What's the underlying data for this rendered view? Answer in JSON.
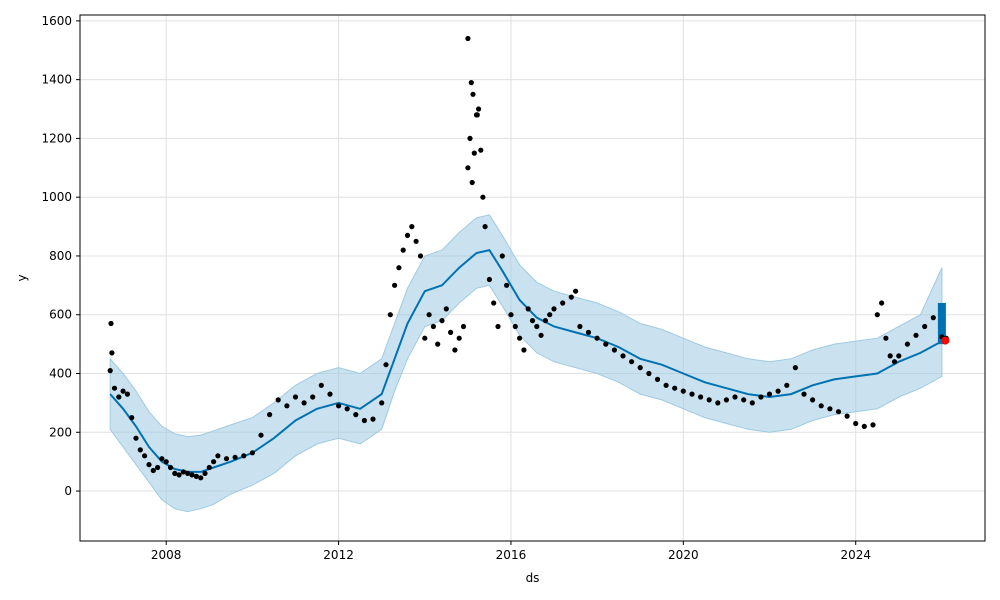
{
  "chart_data": {
    "type": "line",
    "title": "",
    "xlabel": "ds",
    "ylabel": "y",
    "xlim": [
      2006.0,
      2027.0
    ],
    "ylim": [
      -170,
      1620
    ],
    "xticks": [
      2008,
      2012,
      2016,
      2020,
      2024
    ],
    "xtick_labels": [
      "2008",
      "2012",
      "2016",
      "2020",
      "2024"
    ],
    "yticks": [
      0,
      200,
      400,
      600,
      800,
      1000,
      1200,
      1400,
      1600
    ],
    "ytick_labels": [
      "0",
      "200",
      "400",
      "600",
      "800",
      "1000",
      "1200",
      "1400",
      "1600"
    ],
    "grid": true,
    "colors": {
      "observed": "#000000",
      "forecast": "#0072B2",
      "interval": "#9ecae1",
      "marker": "#ff0000"
    },
    "series": [
      {
        "kind": "forecast",
        "x": [
          2006.7,
          2007.0,
          2007.3,
          2007.6,
          2007.9,
          2008.2,
          2008.5,
          2008.8,
          2009.1,
          2009.5,
          2010.0,
          2010.5,
          2011.0,
          2011.5,
          2012.0,
          2012.5,
          2013.0,
          2013.3,
          2013.6,
          2014.0,
          2014.4,
          2014.8,
          2015.2,
          2015.5,
          2015.8,
          2016.2,
          2016.6,
          2017.0,
          2017.5,
          2018.0,
          2018.5,
          2019.0,
          2019.5,
          2020.0,
          2020.5,
          2021.0,
          2021.5,
          2022.0,
          2022.5,
          2023.0,
          2023.5,
          2024.0,
          2024.5,
          2025.0,
          2025.5,
          2026.0
        ],
        "yhat": [
          330,
          280,
          220,
          150,
          100,
          75,
          65,
          65,
          80,
          100,
          130,
          180,
          240,
          280,
          300,
          280,
          330,
          450,
          570,
          680,
          700,
          760,
          810,
          820,
          750,
          650,
          590,
          560,
          540,
          520,
          490,
          450,
          430,
          400,
          370,
          350,
          330,
          320,
          330,
          360,
          380,
          390,
          400,
          440,
          470,
          510
        ],
        "lower": [
          210,
          150,
          90,
          30,
          -30,
          -60,
          -70,
          -60,
          -45,
          -10,
          20,
          60,
          120,
          160,
          180,
          160,
          210,
          340,
          450,
          560,
          580,
          640,
          690,
          700,
          630,
          530,
          470,
          440,
          420,
          400,
          370,
          330,
          310,
          280,
          250,
          230,
          210,
          200,
          210,
          240,
          260,
          270,
          280,
          320,
          350,
          390
        ],
        "upper": [
          450,
          400,
          340,
          270,
          220,
          195,
          185,
          190,
          205,
          225,
          250,
          300,
          360,
          400,
          420,
          400,
          450,
          570,
          690,
          800,
          820,
          880,
          930,
          940,
          870,
          770,
          710,
          680,
          660,
          640,
          610,
          570,
          550,
          520,
          490,
          470,
          450,
          440,
          450,
          480,
          500,
          510,
          520,
          560,
          600,
          760
        ]
      },
      {
        "kind": "observed",
        "x": [
          2006.7,
          2006.8,
          2006.9,
          2007.0,
          2007.1,
          2007.2,
          2007.3,
          2007.4,
          2007.5,
          2007.6,
          2007.7,
          2007.8,
          2007.9,
          2008.0,
          2008.1,
          2008.2,
          2008.3,
          2008.4,
          2008.5,
          2008.6,
          2008.7,
          2008.8,
          2008.9,
          2009.0,
          2009.1,
          2009.2,
          2009.4,
          2009.6,
          2009.8,
          2010.0,
          2010.2,
          2010.4,
          2010.6,
          2010.8,
          2011.0,
          2011.2,
          2011.4,
          2011.6,
          2011.8,
          2012.0,
          2012.2,
          2012.4,
          2012.6,
          2012.8,
          2013.0,
          2013.1,
          2013.2,
          2013.3,
          2013.4,
          2013.5,
          2013.6,
          2013.7,
          2013.8,
          2013.9,
          2014.0,
          2014.1,
          2014.2,
          2014.3,
          2014.4,
          2014.5,
          2014.6,
          2014.7,
          2014.8,
          2014.9,
          2015.0,
          2015.05,
          2015.1,
          2015.15,
          2015.2,
          2015.25,
          2015.3,
          2015.35,
          2015.4,
          2015.5,
          2015.6,
          2015.7,
          2015.8,
          2015.9,
          2016.0,
          2016.1,
          2016.2,
          2016.3,
          2016.4,
          2016.5,
          2016.6,
          2016.7,
          2016.8,
          2016.9,
          2017.0,
          2017.2,
          2017.4,
          2017.5,
          2017.6,
          2017.8,
          2018.0,
          2018.2,
          2018.4,
          2018.6,
          2018.8,
          2019.0,
          2019.2,
          2019.4,
          2019.6,
          2019.8,
          2020.0,
          2020.2,
          2020.4,
          2020.6,
          2020.8,
          2021.0,
          2021.2,
          2021.4,
          2021.6,
          2021.8,
          2022.0,
          2022.2,
          2022.4,
          2022.6,
          2022.8,
          2023.0,
          2023.2,
          2023.4,
          2023.6,
          2023.8,
          2024.0,
          2024.2,
          2024.4,
          2024.5,
          2024.6,
          2024.7,
          2024.8,
          2024.9,
          2025.0,
          2025.2,
          2025.4,
          2025.6,
          2025.8,
          2026.0,
          2026.1,
          2006.72,
          2006.74,
          2015.0,
          2015.08,
          2015.12,
          2015.22
        ],
        "y": [
          410,
          350,
          320,
          340,
          330,
          250,
          180,
          140,
          120,
          90,
          70,
          80,
          110,
          100,
          80,
          60,
          55,
          65,
          60,
          55,
          50,
          45,
          60,
          80,
          100,
          120,
          110,
          115,
          120,
          130,
          190,
          260,
          310,
          290,
          320,
          300,
          320,
          360,
          330,
          290,
          280,
          260,
          240,
          245,
          300,
          430,
          600,
          700,
          760,
          820,
          870,
          900,
          850,
          800,
          520,
          600,
          560,
          500,
          580,
          620,
          540,
          480,
          520,
          560,
          1100,
          1200,
          1050,
          1150,
          1280,
          1300,
          1160,
          1000,
          900,
          720,
          640,
          560,
          800,
          700,
          600,
          560,
          520,
          480,
          620,
          580,
          560,
          530,
          580,
          600,
          620,
          640,
          660,
          680,
          560,
          540,
          520,
          500,
          480,
          460,
          440,
          420,
          400,
          380,
          360,
          350,
          340,
          330,
          320,
          310,
          300,
          310,
          320,
          310,
          300,
          320,
          330,
          340,
          360,
          420,
          330,
          310,
          290,
          280,
          270,
          255,
          230,
          220,
          225,
          600,
          640,
          520,
          460,
          440,
          460,
          500,
          530,
          560,
          590,
          525,
          520,
          570,
          470,
          1540,
          1390,
          1350,
          1280
        ]
      },
      {
        "kind": "marker",
        "x": [
          2026.08
        ],
        "y": [
          512
        ]
      }
    ]
  }
}
